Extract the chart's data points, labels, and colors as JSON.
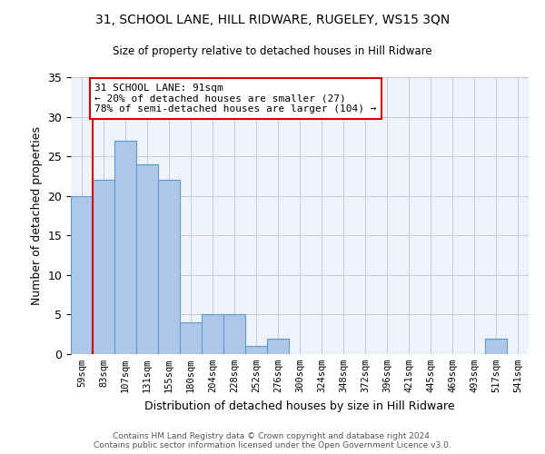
{
  "title": "31, SCHOOL LANE, HILL RIDWARE, RUGELEY, WS15 3QN",
  "subtitle": "Size of property relative to detached houses in Hill Ridware",
  "xlabel": "Distribution of detached houses by size in Hill Ridware",
  "ylabel": "Number of detached properties",
  "bar_color": "#aec6e8",
  "bar_edge_color": "#5b9bd5",
  "categories": [
    "59sqm",
    "83sqm",
    "107sqm",
    "131sqm",
    "155sqm",
    "180sqm",
    "204sqm",
    "228sqm",
    "252sqm",
    "276sqm",
    "300sqm",
    "324sqm",
    "348sqm",
    "372sqm",
    "396sqm",
    "421sqm",
    "445sqm",
    "469sqm",
    "493sqm",
    "517sqm",
    "541sqm"
  ],
  "values": [
    20,
    22,
    27,
    24,
    22,
    4,
    5,
    5,
    1,
    2,
    0,
    0,
    0,
    0,
    0,
    0,
    0,
    0,
    0,
    2,
    0
  ],
  "ylim": [
    0,
    35
  ],
  "yticks": [
    0,
    5,
    10,
    15,
    20,
    25,
    30,
    35
  ],
  "annotation_text": "31 SCHOOL LANE: 91sqm\n← 20% of detached houses are smaller (27)\n78% of semi-detached houses are larger (104) →",
  "annotation_box_color": "#ffffff",
  "annotation_box_edge": "#cc0000",
  "line_color": "#cc0000",
  "background_color": "#eef2fa",
  "footer_text": "Contains HM Land Registry data © Crown copyright and database right 2024.\nContains public sector information licensed under the Open Government Licence v3.0.",
  "grid_color": "#c8c8d8"
}
